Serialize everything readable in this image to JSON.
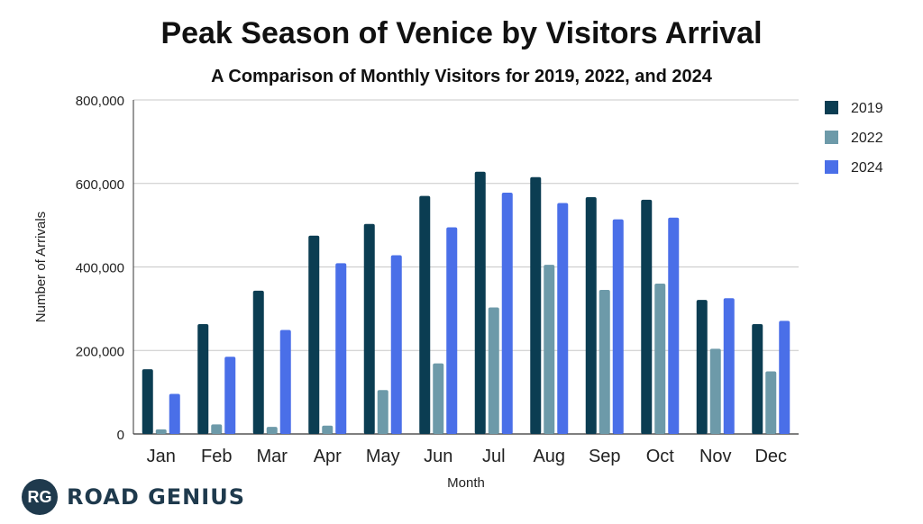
{
  "brand": {
    "badge": "RG",
    "name": "ROAD GENIUS"
  },
  "chart_data": {
    "type": "bar",
    "title": "Peak Season of Venice by Visitors Arrival",
    "subtitle": "A Comparison of Monthly Visitors for 2019, 2022, and 2024",
    "xlabel": "Month",
    "ylabel": "Number of Arrivals",
    "ylim": [
      0,
      800000
    ],
    "yticks": [
      0,
      200000,
      400000,
      600000,
      800000
    ],
    "ytick_labels": [
      "0",
      "200,000",
      "400,000",
      "600,000",
      "800,000"
    ],
    "grid": true,
    "legend_position": "top-right",
    "categories": [
      "Jan",
      "Feb",
      "Mar",
      "Apr",
      "May",
      "Jun",
      "Jul",
      "Aug",
      "Sep",
      "Oct",
      "Nov",
      "Dec"
    ],
    "series": [
      {
        "name": "2019",
        "color": "#0b3d52",
        "values": [
          155000,
          263000,
          343000,
          475000,
          503000,
          570000,
          628000,
          615000,
          567000,
          561000,
          321000,
          263000
        ]
      },
      {
        "name": "2022",
        "color": "#6d9aa9",
        "values": [
          11000,
          23000,
          17000,
          20000,
          105000,
          169000,
          303000,
          405000,
          345000,
          360000,
          204000,
          150000
        ]
      },
      {
        "name": "2024",
        "color": "#4a6fe8",
        "values": [
          96000,
          185000,
          249000,
          409000,
          428000,
          495000,
          578000,
          553000,
          514000,
          518000,
          325000,
          271000
        ]
      }
    ]
  }
}
